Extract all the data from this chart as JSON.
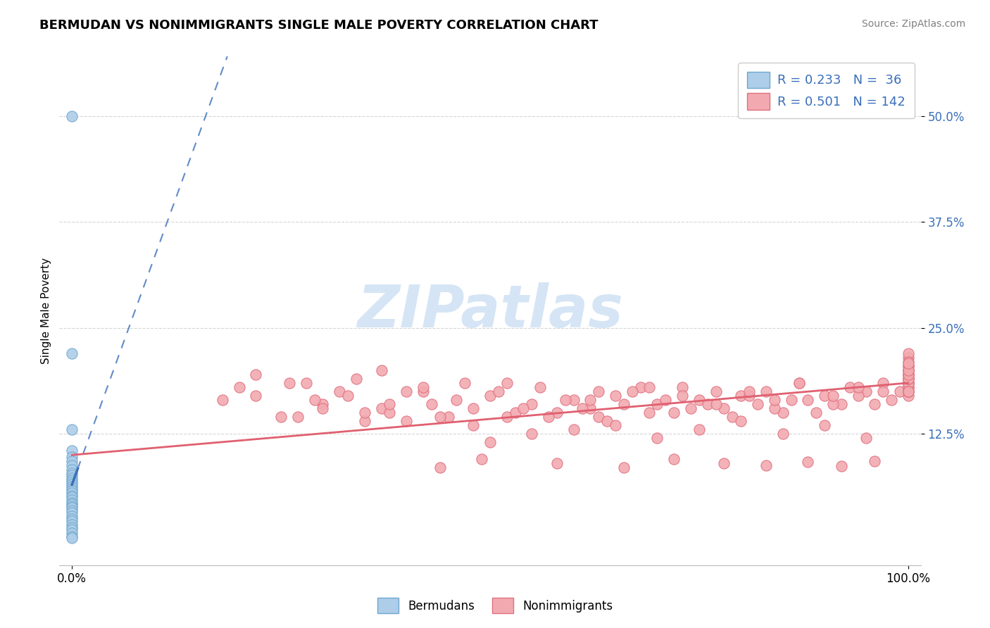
{
  "title": "BERMUDAN VS NONIMMIGRANTS SINGLE MALE POVERTY CORRELATION CHART",
  "source": "Source: ZipAtlas.com",
  "ylabel": "Single Male Poverty",
  "xlim": [
    -0.015,
    1.015
  ],
  "ylim": [
    -0.03,
    0.57
  ],
  "y_ticks": [
    0.125,
    0.25,
    0.375,
    0.5
  ],
  "y_tick_labels": [
    "12.5%",
    "25.0%",
    "37.5%",
    "50.0%"
  ],
  "x_ticks": [
    0.0,
    1.0
  ],
  "x_tick_labels": [
    "0.0%",
    "100.0%"
  ],
  "bermudan_face": "#aecde8",
  "bermudan_edge": "#6fa8d0",
  "nonimm_face": "#f2aab0",
  "nonimm_edge": "#e07080",
  "blue_line_color": "#3a6fba",
  "pink_line_color": "#e06070",
  "R_bermudan": 0.233,
  "N_bermudan": 36,
  "R_nonimmigrant": 0.501,
  "N_nonimmigrant": 142,
  "legend_text_color": "#3a6fba",
  "watermark_color": "#d5e5f5",
  "background_color": "#ffffff",
  "grid_color": "#cccccc",
  "bermudan_x": [
    0.0,
    0.0,
    0.0,
    0.0,
    0.0,
    0.0,
    0.0,
    0.0,
    0.0,
    0.0,
    0.0,
    0.0,
    0.0,
    0.0,
    0.0,
    0.0,
    0.0,
    0.0,
    0.0,
    0.0,
    0.0,
    0.0,
    0.0,
    0.0,
    0.0,
    0.0,
    0.0,
    0.0,
    0.0,
    0.0,
    0.0,
    0.0,
    0.0,
    0.0,
    0.0,
    0.0
  ],
  "bermudan_y": [
    0.5,
    0.22,
    0.13,
    0.105,
    0.098,
    0.093,
    0.088,
    0.083,
    0.079,
    0.076,
    0.073,
    0.07,
    0.068,
    0.065,
    0.063,
    0.06,
    0.058,
    0.055,
    0.052,
    0.05,
    0.047,
    0.044,
    0.042,
    0.04,
    0.038,
    0.035,
    0.032,
    0.028,
    0.025,
    0.022,
    0.018,
    0.015,
    0.012,
    0.008,
    0.004,
    0.002
  ],
  "nonimm_x": [
    0.22,
    0.26,
    0.3,
    0.32,
    0.27,
    0.34,
    0.37,
    0.29,
    0.35,
    0.4,
    0.38,
    0.43,
    0.2,
    0.45,
    0.18,
    0.48,
    0.5,
    0.52,
    0.47,
    0.55,
    0.42,
    0.58,
    0.6,
    0.56,
    0.62,
    0.65,
    0.63,
    0.68,
    0.7,
    0.67,
    0.72,
    0.75,
    0.73,
    0.78,
    0.8,
    0.77,
    0.82,
    0.85,
    0.83,
    0.88,
    0.9,
    0.87,
    0.92,
    0.95,
    0.93,
    0.98,
    0.97,
    0.99,
    1.0,
    1.0,
    1.0,
    1.0,
    1.0,
    1.0,
    1.0,
    1.0,
    1.0,
    1.0,
    1.0,
    1.0,
    1.0,
    1.0,
    1.0,
    1.0,
    1.0,
    1.0,
    1.0,
    1.0,
    1.0,
    1.0,
    1.0,
    1.0,
    0.25,
    0.3,
    0.35,
    0.4,
    0.44,
    0.48,
    0.53,
    0.57,
    0.61,
    0.64,
    0.69,
    0.71,
    0.74,
    0.76,
    0.79,
    0.81,
    0.84,
    0.86,
    0.89,
    0.91,
    0.94,
    0.96,
    1.0,
    1.0,
    0.5,
    0.55,
    0.6,
    0.65,
    0.7,
    0.75,
    0.8,
    0.85,
    0.9,
    0.95,
    0.22,
    0.28,
    0.33,
    0.38,
    0.42,
    0.46,
    0.51,
    0.54,
    0.59,
    0.63,
    0.66,
    0.69,
    0.73,
    0.77,
    0.81,
    0.84,
    0.87,
    0.91,
    0.94,
    0.97,
    1.0,
    1.0,
    0.44,
    0.49,
    0.58,
    0.66,
    0.72,
    0.78,
    0.83,
    0.88,
    0.92,
    0.96,
    1.0,
    1.0,
    1.0,
    1.0,
    1.0,
    1.0,
    0.37,
    0.52,
    0.62
  ],
  "nonimm_y": [
    0.17,
    0.185,
    0.16,
    0.175,
    0.145,
    0.19,
    0.155,
    0.165,
    0.14,
    0.175,
    0.15,
    0.16,
    0.18,
    0.145,
    0.165,
    0.155,
    0.17,
    0.145,
    0.185,
    0.16,
    0.175,
    0.15,
    0.165,
    0.18,
    0.155,
    0.17,
    0.145,
    0.18,
    0.16,
    0.175,
    0.15,
    0.165,
    0.18,
    0.155,
    0.17,
    0.175,
    0.16,
    0.15,
    0.175,
    0.165,
    0.17,
    0.185,
    0.16,
    0.175,
    0.18,
    0.165,
    0.185,
    0.175,
    0.18,
    0.195,
    0.17,
    0.185,
    0.19,
    0.175,
    0.195,
    0.185,
    0.18,
    0.2,
    0.175,
    0.195,
    0.185,
    0.2,
    0.18,
    0.195,
    0.205,
    0.19,
    0.2,
    0.185,
    0.195,
    0.175,
    0.2,
    0.19,
    0.145,
    0.155,
    0.15,
    0.14,
    0.145,
    0.135,
    0.15,
    0.145,
    0.155,
    0.14,
    0.15,
    0.165,
    0.155,
    0.16,
    0.145,
    0.17,
    0.155,
    0.165,
    0.15,
    0.16,
    0.17,
    0.16,
    0.19,
    0.175,
    0.115,
    0.125,
    0.13,
    0.135,
    0.12,
    0.13,
    0.14,
    0.125,
    0.135,
    0.12,
    0.195,
    0.185,
    0.17,
    0.16,
    0.18,
    0.165,
    0.175,
    0.155,
    0.165,
    0.175,
    0.16,
    0.18,
    0.17,
    0.16,
    0.175,
    0.165,
    0.185,
    0.17,
    0.18,
    0.175,
    0.19,
    0.205,
    0.085,
    0.095,
    0.09,
    0.085,
    0.095,
    0.09,
    0.088,
    0.092,
    0.087,
    0.093,
    0.215,
    0.22,
    0.21,
    0.195,
    0.2,
    0.208,
    0.2,
    0.185,
    0.165
  ]
}
